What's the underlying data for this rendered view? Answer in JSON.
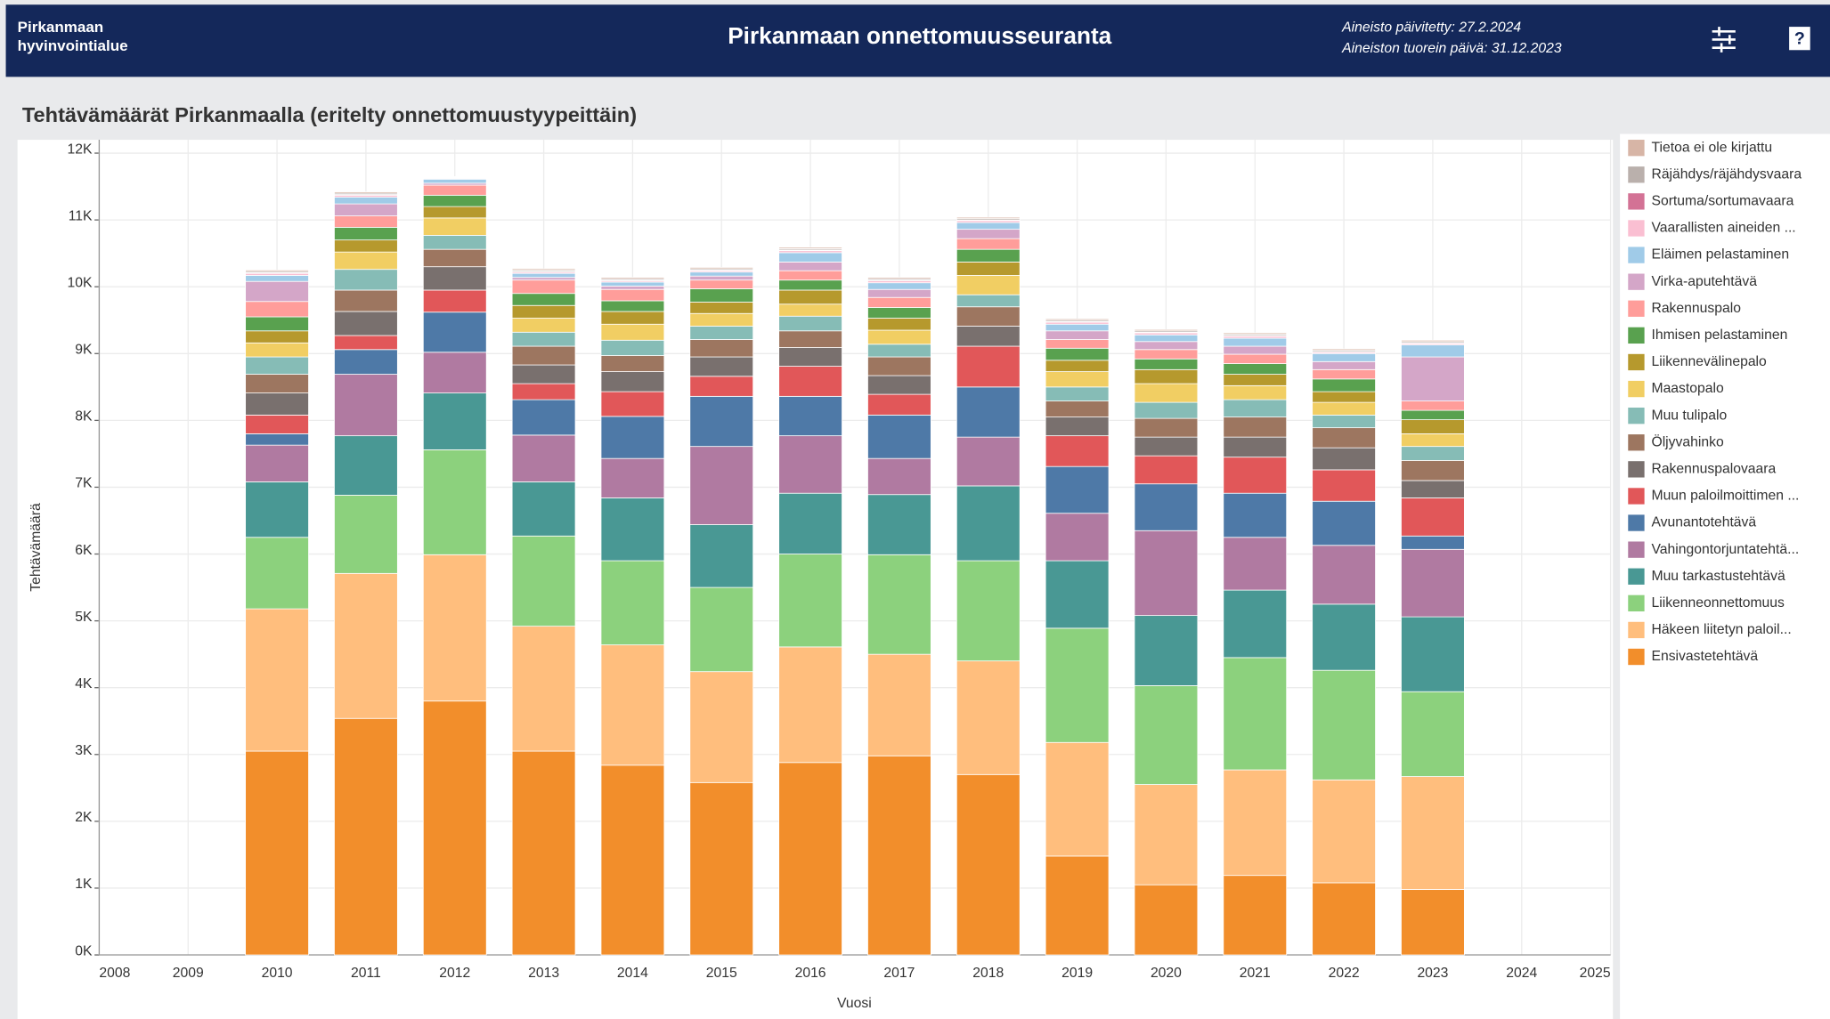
{
  "header": {
    "org": [
      "Pirkanmaan",
      "hyvinvointialue"
    ],
    "title": "Pirkanmaan onnettomuusseuranta",
    "updated": "Aineisto päivitetty: 27.2.2024",
    "latest": "Aineiston tuorein päivä: 31.12.2023",
    "help": "?"
  },
  "chart_data": {
    "type": "bar",
    "stacked": true,
    "title": "Tehtävämäärät Pirkanmaalla (eritelty onnettomuustyypeittäin)",
    "x_label": "Vuosi",
    "y_label": "Tehtävämäärä",
    "x": [
      2010,
      2011,
      2012,
      2013,
      2014,
      2015,
      2016,
      2017,
      2018,
      2019,
      2020,
      2021,
      2022,
      2023
    ],
    "xlim": [
      2008,
      2025
    ],
    "xticks": [
      2008,
      2009,
      2010,
      2011,
      2012,
      2013,
      2014,
      2015,
      2016,
      2017,
      2018,
      2019,
      2020,
      2021,
      2022,
      2023,
      2024,
      2025
    ],
    "ylim": [
      0,
      12200
    ],
    "yticks": [
      {
        "value": 0,
        "label": "0K"
      },
      {
        "value": 1000,
        "label": "1K"
      },
      {
        "value": 2000,
        "label": "2K"
      },
      {
        "value": 3000,
        "label": "3K"
      },
      {
        "value": 4000,
        "label": "4K"
      },
      {
        "value": 5000,
        "label": "5K"
      },
      {
        "value": 6000,
        "label": "6K"
      },
      {
        "value": 7000,
        "label": "7K"
      },
      {
        "value": 8000,
        "label": "8K"
      },
      {
        "value": 9000,
        "label": "9K"
      },
      {
        "value": 10000,
        "label": "10K"
      },
      {
        "value": 11000,
        "label": "11K"
      },
      {
        "value": 12000,
        "label": "12K"
      }
    ],
    "grid": true,
    "legend": "right",
    "series": [
      {
        "name": "Ensivastetehtävä",
        "color": "#f28e2b",
        "values": [
          3050,
          3540,
          3800,
          3050,
          2840,
          2580,
          2880,
          2980,
          2700,
          1480,
          1050,
          1190,
          1080,
          980
        ]
      },
      {
        "name": "Häkeen liitetyn paloil...",
        "color": "#ffbe7d",
        "values": [
          2130,
          2170,
          2190,
          1870,
          1800,
          1660,
          1730,
          1520,
          1700,
          1700,
          1500,
          1580,
          1540,
          1690
        ]
      },
      {
        "name": "Liikenneonnettomuus",
        "color": "#8cd17d",
        "values": [
          1070,
          1170,
          1570,
          1350,
          1260,
          1260,
          1390,
          1490,
          1500,
          1710,
          1480,
          1680,
          1640,
          1270
        ]
      },
      {
        "name": "Muu tarkastustehtävä",
        "color": "#499894",
        "values": [
          830,
          890,
          850,
          810,
          940,
          940,
          910,
          900,
          1120,
          1010,
          1050,
          1010,
          990,
          1120
        ]
      },
      {
        "name": "Vahingontorjuntatehtä...",
        "color": "#b07aa1",
        "values": [
          550,
          920,
          610,
          700,
          590,
          1170,
          860,
          540,
          730,
          710,
          1270,
          790,
          880,
          1010
        ]
      },
      {
        "name": "Avunantotehtävä",
        "color": "#4e79a7",
        "values": [
          170,
          370,
          600,
          530,
          630,
          750,
          590,
          650,
          750,
          700,
          700,
          660,
          660,
          200
        ]
      },
      {
        "name": "Muun paloilmoittimen ...",
        "color": "#e15759",
        "values": [
          280,
          210,
          330,
          240,
          370,
          300,
          450,
          310,
          610,
          460,
          420,
          540,
          470,
          570
        ]
      },
      {
        "name": "Rakennuspalovaara",
        "color": "#79706e",
        "values": [
          330,
          360,
          350,
          280,
          300,
          290,
          280,
          280,
          300,
          280,
          280,
          300,
          330,
          260
        ]
      },
      {
        "name": "Öljyvahinko",
        "color": "#9d7660",
        "values": [
          280,
          320,
          260,
          280,
          240,
          260,
          250,
          280,
          290,
          240,
          280,
          300,
          300,
          300
        ]
      },
      {
        "name": "Muu tulipalo",
        "color": "#86bcb6",
        "values": [
          260,
          310,
          210,
          210,
          230,
          200,
          220,
          190,
          180,
          210,
          240,
          260,
          190,
          210
        ]
      },
      {
        "name": "Maastopalo",
        "color": "#f1ce63",
        "values": [
          210,
          260,
          260,
          210,
          240,
          190,
          180,
          210,
          290,
          230,
          280,
          210,
          190,
          190
        ]
      },
      {
        "name": "Liikennevälinepalo",
        "color": "#b6992d",
        "values": [
          180,
          180,
          170,
          190,
          190,
          170,
          210,
          180,
          200,
          170,
          210,
          170,
          160,
          210
        ]
      },
      {
        "name": "Ihmisen pelastaminen",
        "color": "#59a14f",
        "values": [
          210,
          190,
          170,
          180,
          160,
          200,
          150,
          160,
          190,
          180,
          160,
          160,
          190,
          140
        ]
      },
      {
        "name": "Rakennuspalo",
        "color": "#ff9d9a",
        "values": [
          230,
          170,
          150,
          200,
          170,
          130,
          140,
          150,
          160,
          130,
          140,
          140,
          140,
          140
        ]
      },
      {
        "name": "Virka-aputehtävä",
        "color": "#d4a6c8",
        "values": [
          300,
          180,
          30,
          40,
          50,
          60,
          130,
          120,
          140,
          130,
          120,
          120,
          120,
          660
        ]
      },
      {
        "name": "Eläimen pelastaminen",
        "color": "#a0cbe8",
        "values": [
          90,
          100,
          60,
          60,
          60,
          60,
          140,
          100,
          100,
          100,
          100,
          120,
          120,
          180
        ]
      },
      {
        "name": "Vaarallisten aineiden ...",
        "color": "#fabfd2",
        "values": [
          30,
          30,
          10,
          20,
          20,
          20,
          30,
          30,
          30,
          30,
          30,
          30,
          20,
          20
        ]
      },
      {
        "name": "Sortuma/sortumavaara",
        "color": "#d37295",
        "values": [
          10,
          10,
          10,
          10,
          10,
          10,
          10,
          10,
          10,
          10,
          10,
          10,
          10,
          10
        ]
      },
      {
        "name": "Räjähdys/räjähdysvaara",
        "color": "#bab0ac",
        "values": [
          20,
          20,
          10,
          20,
          20,
          20,
          20,
          20,
          20,
          20,
          20,
          20,
          20,
          20
        ]
      },
      {
        "name": "Tietoa ei ole kirjattu",
        "color": "#d7b5a6",
        "values": [
          20,
          20,
          10,
          20,
          20,
          20,
          20,
          20,
          20,
          20,
          20,
          20,
          20,
          20
        ]
      }
    ]
  }
}
